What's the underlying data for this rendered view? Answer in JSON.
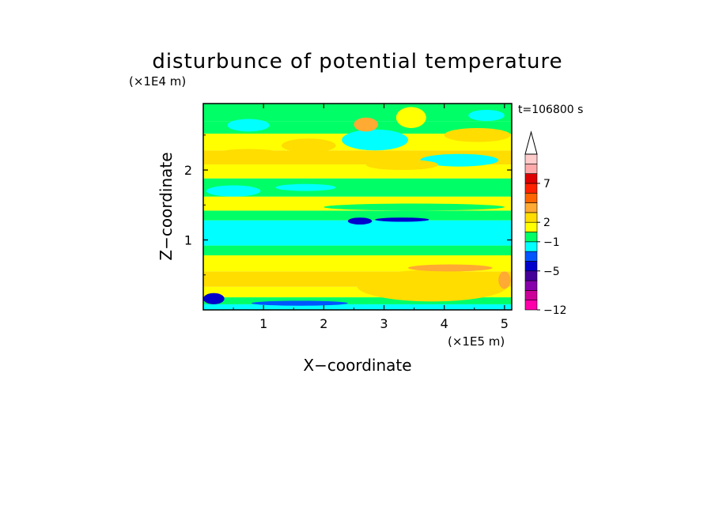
{
  "chart_data": {
    "type": "heatmap",
    "title": "disturbunce of potential temperature",
    "xlabel": "X−coordinate",
    "ylabel": "Z−coordinate",
    "x_unit": "(×1E5 m)",
    "y_unit": "(×1E4 m)",
    "time_label": "t=106800 s",
    "xlim": [
      0,
      5.12
    ],
    "ylim": [
      0,
      2.95
    ],
    "x_ticks": [
      {
        "value": 1,
        "label": "1"
      },
      {
        "value": 2,
        "label": "2"
      },
      {
        "value": 3,
        "label": "3"
      },
      {
        "value": 4,
        "label": "4"
      },
      {
        "value": 5,
        "label": "5"
      }
    ],
    "y_ticks": [
      {
        "value": 1,
        "label": "1"
      },
      {
        "value": 2,
        "label": "2"
      }
    ],
    "colorbar": {
      "colors": [
        "#ff00aa",
        "#cc0099",
        "#8800aa",
        "#440099",
        "#0000cc",
        "#0055ff",
        "#00ffff",
        "#00ff66",
        "#ffff00",
        "#ffdd00",
        "#ffaa33",
        "#ff6600",
        "#ff2200",
        "#dd0000",
        "#ffaaaa",
        "#ffcccc"
      ],
      "labels": [
        {
          "level": 0,
          "label": "−12"
        },
        {
          "level": 4,
          "label": "−5"
        },
        {
          "level": 7,
          "label": "−1"
        },
        {
          "level": 9,
          "label": "2"
        },
        {
          "level": 13,
          "label": "7"
        }
      ],
      "extend": "max"
    },
    "bands": [
      {
        "z0": 0.0,
        "z1": 0.08,
        "color": "#00ffff"
      },
      {
        "z0": 0.08,
        "z1": 0.18,
        "color": "#00ff66"
      },
      {
        "z0": 0.18,
        "z1": 0.33,
        "color": "#ffff00"
      },
      {
        "z0": 0.33,
        "z1": 0.55,
        "color": "#ffdd00"
      },
      {
        "z0": 0.55,
        "z1": 0.78,
        "color": "#ffff00"
      },
      {
        "z0": 0.78,
        "z1": 0.92,
        "color": "#00ff66"
      },
      {
        "z0": 0.92,
        "z1": 1.28,
        "color": "#00ffff"
      },
      {
        "z0": 1.28,
        "z1": 1.42,
        "color": "#00ff66"
      },
      {
        "z0": 1.42,
        "z1": 1.62,
        "color": "#ffff00"
      },
      {
        "z0": 1.62,
        "z1": 1.88,
        "color": "#00ff66"
      },
      {
        "z0": 1.88,
        "z1": 2.08,
        "color": "#ffff00"
      },
      {
        "z0": 2.08,
        "z1": 2.28,
        "color": "#ffdd00"
      },
      {
        "z0": 2.28,
        "z1": 2.52,
        "color": "#ffff00"
      },
      {
        "z0": 2.52,
        "z1": 2.7,
        "color": "#00ff66"
      },
      {
        "z0": 2.7,
        "z1": 2.95,
        "color": "#00ff66"
      }
    ],
    "patches": [
      {
        "x": 0.0,
        "z": 0.08,
        "w": 0.35,
        "h": 0.16,
        "color": "#0000cc"
      },
      {
        "x": 0.8,
        "z": 0.06,
        "w": 1.6,
        "h": 0.07,
        "color": "#0055ff"
      },
      {
        "x": 2.4,
        "z": 1.22,
        "w": 0.4,
        "h": 0.1,
        "color": "#0000cc"
      },
      {
        "x": 2.85,
        "z": 1.26,
        "w": 0.9,
        "h": 0.06,
        "color": "#0000cc"
      },
      {
        "x": 2.6,
        "z": 2.35,
        "w": 0.35,
        "h": 0.1,
        "color": "#0000cc"
      },
      {
        "x": 0.4,
        "z": 2.55,
        "w": 0.7,
        "h": 0.18,
        "color": "#00ffff"
      },
      {
        "x": 2.3,
        "z": 2.28,
        "w": 1.1,
        "h": 0.3,
        "color": "#00ffff"
      },
      {
        "x": 3.6,
        "z": 2.05,
        "w": 1.3,
        "h": 0.18,
        "color": "#00ffff"
      },
      {
        "x": 0.05,
        "z": 1.62,
        "w": 0.9,
        "h": 0.16,
        "color": "#00ffff"
      },
      {
        "x": 1.2,
        "z": 1.7,
        "w": 1.0,
        "h": 0.1,
        "color": "#00ffff"
      },
      {
        "x": 4.4,
        "z": 2.7,
        "w": 0.6,
        "h": 0.16,
        "color": "#00ffff"
      },
      {
        "x": 0.1,
        "z": 2.1,
        "w": 1.3,
        "h": 0.2,
        "color": "#ffdd00"
      },
      {
        "x": 2.7,
        "z": 2.0,
        "w": 1.2,
        "h": 0.15,
        "color": "#ffdd00"
      },
      {
        "x": 2.55,
        "z": 0.12,
        "w": 2.5,
        "h": 0.45,
        "color": "#ffdd00"
      },
      {
        "x": 0.1,
        "z": 0.4,
        "w": 2.2,
        "h": 0.12,
        "color": "#ffdd00"
      },
      {
        "x": 1.3,
        "z": 2.25,
        "w": 0.9,
        "h": 0.2,
        "color": "#ffdd00"
      },
      {
        "x": 2.5,
        "z": 2.55,
        "w": 0.4,
        "h": 0.2,
        "color": "#ffaa33"
      },
      {
        "x": 3.4,
        "z": 0.55,
        "w": 1.4,
        "h": 0.1,
        "color": "#ffaa33"
      },
      {
        "x": 4.9,
        "z": 0.3,
        "w": 0.2,
        "h": 0.25,
        "color": "#ffaa33"
      },
      {
        "x": 0.0,
        "z": 1.05,
        "w": 5.12,
        "h": 0.1,
        "color": "#00ffff"
      },
      {
        "x": 2.0,
        "z": 1.42,
        "w": 3.0,
        "h": 0.1,
        "color": "#00ff66"
      },
      {
        "x": 4.0,
        "z": 2.4,
        "w": 1.1,
        "h": 0.2,
        "color": "#ffdd00"
      },
      {
        "x": 3.2,
        "z": 2.6,
        "w": 0.5,
        "h": 0.3,
        "color": "#ffff00"
      }
    ]
  }
}
